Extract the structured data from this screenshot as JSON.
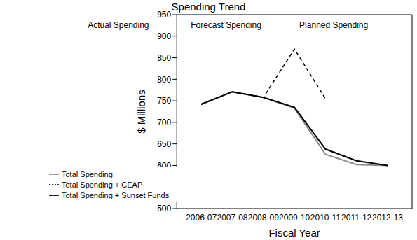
{
  "chart_data": {
    "type": "line",
    "title": "Spending Trend",
    "xlabel": "Fiscal Year",
    "ylabel": "$ Millions",
    "annotations": [
      "Actual Spending",
      "Forecast Spending",
      "Planned Spending"
    ],
    "categories": [
      "2006-07",
      "2007-08",
      "2008-09",
      "2009-10",
      "2010-11",
      "2011-12",
      "2012-13"
    ],
    "series": [
      {
        "name": "Total Spending",
        "color": "#8c8c8c",
        "line_style": "solid",
        "values": [
          742,
          771,
          758,
          733,
          626,
          602,
          600
        ]
      },
      {
        "name": "Total Spending + CEAP",
        "color": "#000000",
        "line_style": "dashed",
        "values": [
          742,
          771,
          758,
          870,
          755,
          null,
          null
        ]
      },
      {
        "name": "Total Spending + Sunset Funds",
        "color": "#000000",
        "line_style": "solid",
        "values": [
          742,
          771,
          758,
          735,
          638,
          611,
          600
        ]
      }
    ],
    "ylim": [
      500,
      950
    ],
    "yticks": [
      500,
      550,
      600,
      650,
      700,
      750,
      800,
      850,
      900,
      950
    ],
    "grid": false,
    "legend": "lower left"
  }
}
